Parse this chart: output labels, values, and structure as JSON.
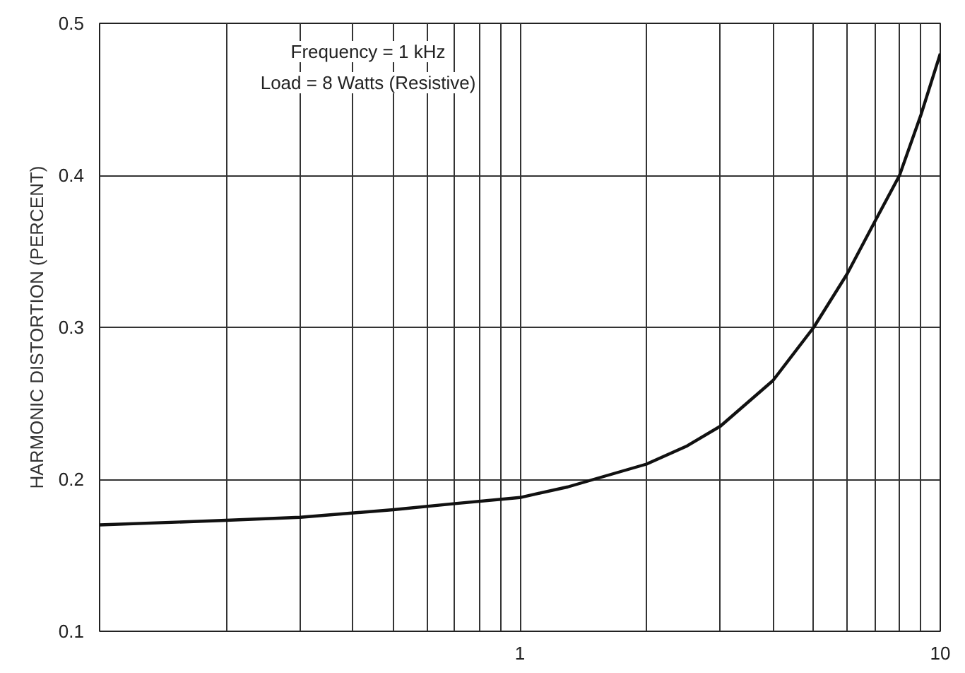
{
  "chart_data": {
    "type": "line",
    "ylabel": "HARMONIC DISTORTION (PERCENT)",
    "annotations": [
      "Frequency = 1 kHz",
      "Load = 8 Watts (Resistive)"
    ],
    "x": [
      0.1,
      0.2,
      0.3,
      0.5,
      0.7,
      1,
      1.3,
      1.5,
      2,
      2.5,
      3,
      4,
      5,
      6,
      7,
      8,
      9,
      10
    ],
    "series": [
      {
        "color": "#111111",
        "values": [
          0.17,
          0.173,
          0.175,
          0.18,
          0.184,
          0.188,
          0.195,
          0.2,
          0.21,
          0.222,
          0.235,
          0.265,
          0.3,
          0.335,
          0.37,
          0.4,
          0.44,
          0.48
        ]
      }
    ],
    "log": "x",
    "xlim": [
      0.1,
      10
    ],
    "ylim": [
      0.1,
      0.5
    ],
    "xticks": [
      {
        "value": 0.1,
        "label": null
      },
      {
        "value": 0.2,
        "label": null
      },
      {
        "value": 0.3,
        "label": null
      },
      {
        "value": 0.4,
        "label": null
      },
      {
        "value": 0.5,
        "label": null
      },
      {
        "value": 0.6,
        "label": null
      },
      {
        "value": 0.7,
        "label": null
      },
      {
        "value": 0.8,
        "label": null
      },
      {
        "value": 0.9,
        "label": null
      },
      1,
      {
        "value": 2,
        "label": null
      },
      {
        "value": 3,
        "label": null
      },
      {
        "value": 4,
        "label": null
      },
      {
        "value": 5,
        "label": null
      },
      {
        "value": 6,
        "label": null
      },
      {
        "value": 7,
        "label": null
      },
      {
        "value": 8,
        "label": null
      },
      {
        "value": 9,
        "label": null
      },
      10
    ],
    "yticks": [
      0.1,
      0.2,
      0.3,
      0.4,
      0.5
    ],
    "grid": true,
    "marker": "none",
    "line_style": "solid"
  }
}
